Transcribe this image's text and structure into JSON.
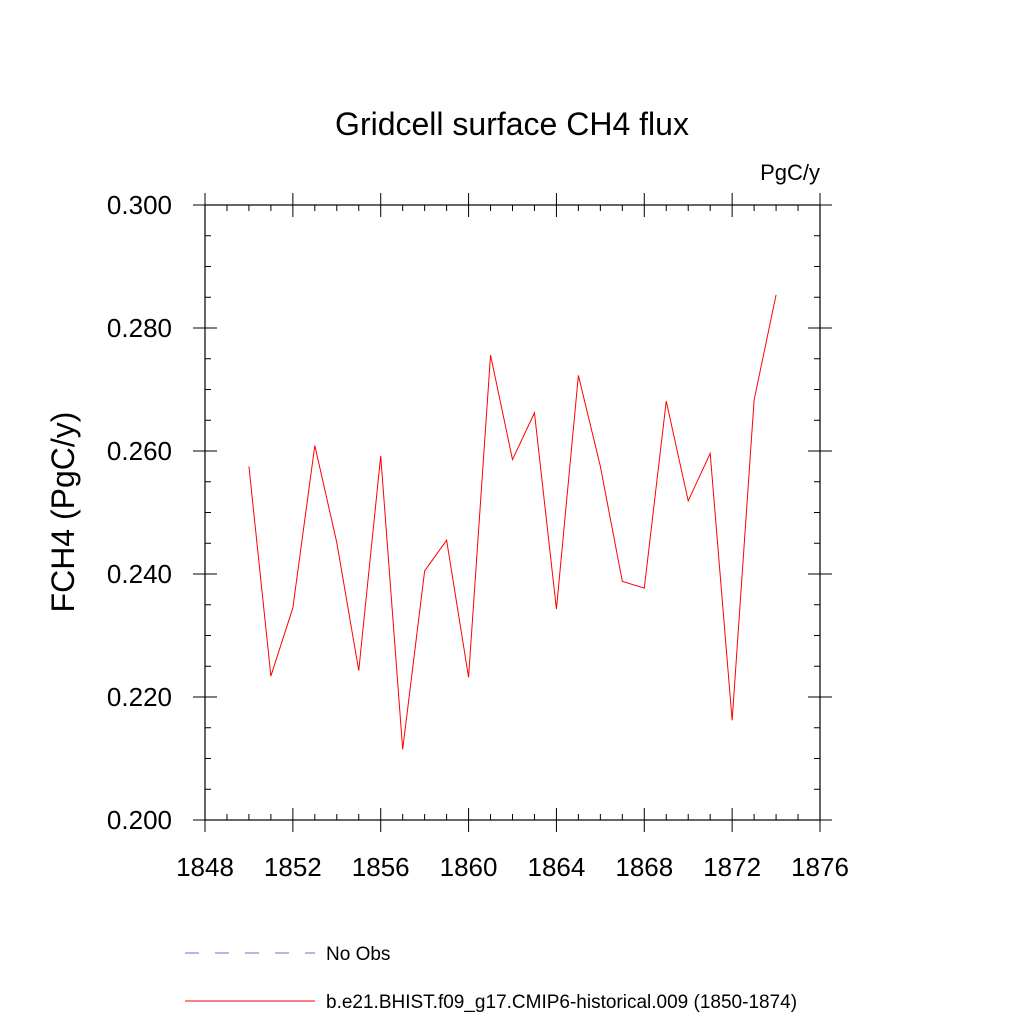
{
  "chart_data": {
    "type": "line",
    "title": "Gridcell surface CH4 flux",
    "units_label": "PgC/y",
    "xlabel": "",
    "ylabel": "FCH4  (PgC/y)",
    "xlim": [
      1848,
      1876
    ],
    "ylim": [
      0.2,
      0.3
    ],
    "xticks": [
      1848,
      1852,
      1856,
      1860,
      1864,
      1868,
      1872,
      1876
    ],
    "xtick_labels": [
      "1848",
      "1852",
      "1856",
      "1860",
      "1864",
      "1868",
      "1872",
      "1876"
    ],
    "yticks": [
      0.2,
      0.22,
      0.24,
      0.26,
      0.28,
      0.3
    ],
    "ytick_labels": [
      "0.200",
      "0.220",
      "0.240",
      "0.260",
      "0.280",
      "0.300"
    ],
    "grid": false,
    "legend_position": "bottom",
    "series": [
      {
        "name": "b.e21.BHIST.f09_g17.CMIP6-historical.009 (1850-1874)",
        "color": "#ff0000",
        "x": [
          1850,
          1851,
          1852,
          1853,
          1854,
          1855,
          1856,
          1857,
          1858,
          1859,
          1860,
          1861,
          1862,
          1863,
          1864,
          1865,
          1866,
          1867,
          1868,
          1869,
          1870,
          1871,
          1872,
          1873,
          1874
        ],
        "y": [
          0.2575,
          0.2234,
          0.2345,
          0.2609,
          0.2451,
          0.2243,
          0.2592,
          0.2115,
          0.2405,
          0.2455,
          0.2232,
          0.2756,
          0.2586,
          0.2662,
          0.2343,
          0.2723,
          0.2575,
          0.2388,
          0.2377,
          0.2681,
          0.2519,
          0.2596,
          0.2162,
          0.2683,
          0.2854
        ]
      }
    ],
    "legend": [
      {
        "label": "No Obs",
        "style": "dashed",
        "color": "#8a8ad0"
      },
      {
        "label": "b.e21.BHIST.f09_g17.CMIP6-historical.009 (1850-1874)",
        "style": "solid",
        "color": "#ff0000"
      }
    ]
  }
}
